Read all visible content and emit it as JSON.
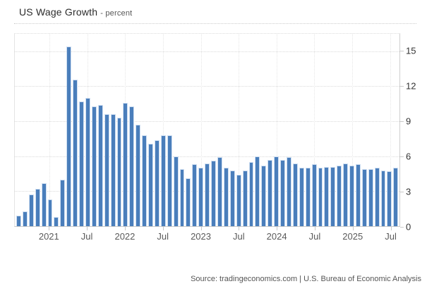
{
  "header": {
    "title": "US Wage Growth",
    "subtitle": "- percent"
  },
  "source": {
    "text": "Source: tradingeconomics.com | U.S. Bureau of Economic Analysis"
  },
  "chart_data": {
    "type": "bar",
    "title": "US Wage Growth",
    "ylabel": "percent",
    "xlabel": "",
    "legend": "none",
    "grid": "dotted",
    "y_axis_position": "right",
    "bar_color": "#4a7ebb",
    "bar_border_color": "#cfdff2",
    "ylim": [
      0,
      16.5
    ],
    "y_ticks": [
      0,
      3,
      6,
      9,
      12,
      15
    ],
    "categories": [
      "2020-08",
      "2020-09",
      "2020-10",
      "2020-11",
      "2020-12",
      "2021-01",
      "2021-02",
      "2021-03",
      "2021-04",
      "2021-05",
      "2021-06",
      "2021-07",
      "2021-08",
      "2021-09",
      "2021-10",
      "2021-11",
      "2021-12",
      "2022-01",
      "2022-02",
      "2022-03",
      "2022-04",
      "2022-05",
      "2022-06",
      "2022-07",
      "2022-08",
      "2022-09",
      "2022-10",
      "2022-11",
      "2022-12",
      "2023-01",
      "2023-02",
      "2023-03",
      "2023-04",
      "2023-05",
      "2023-06",
      "2023-07",
      "2023-08",
      "2023-09",
      "2023-10",
      "2023-11",
      "2023-12",
      "2024-01",
      "2024-02",
      "2024-03",
      "2024-04",
      "2024-05",
      "2024-06",
      "2024-07",
      "2024-08",
      "2024-09",
      "2024-10",
      "2024-11",
      "2024-12",
      "2025-01",
      "2025-02",
      "2025-03",
      "2025-04",
      "2025-05",
      "2025-06",
      "2025-07",
      "2025-08"
    ],
    "values": [
      0.9,
      1.3,
      2.7,
      3.2,
      3.7,
      2.3,
      0.8,
      4.0,
      15.4,
      12.6,
      10.7,
      11.0,
      10.3,
      10.4,
      9.6,
      9.6,
      9.3,
      10.6,
      10.3,
      8.7,
      7.8,
      7.1,
      7.4,
      7.8,
      7.8,
      6.0,
      4.9,
      4.1,
      5.3,
      5.0,
      5.4,
      5.6,
      5.9,
      5.0,
      4.8,
      4.4,
      4.8,
      5.5,
      6.0,
      5.2,
      5.7,
      6.0,
      5.7,
      5.9,
      5.4,
      5.0,
      5.0,
      5.3,
      5.0,
      5.1,
      5.1,
      5.2,
      5.4,
      5.2,
      5.3,
      4.9,
      4.9,
      5.0,
      4.8,
      4.7,
      5.0
    ],
    "x_ticks": [
      {
        "index": 5,
        "label": "2021"
      },
      {
        "index": 11,
        "label": "Jul"
      },
      {
        "index": 17,
        "label": "2022"
      },
      {
        "index": 23,
        "label": "Jul"
      },
      {
        "index": 29,
        "label": "2023"
      },
      {
        "index": 35,
        "label": "Jul"
      },
      {
        "index": 41,
        "label": "2024"
      },
      {
        "index": 47,
        "label": "Jul"
      },
      {
        "index": 53,
        "label": "2025"
      },
      {
        "index": 59,
        "label": "Jul"
      }
    ]
  }
}
